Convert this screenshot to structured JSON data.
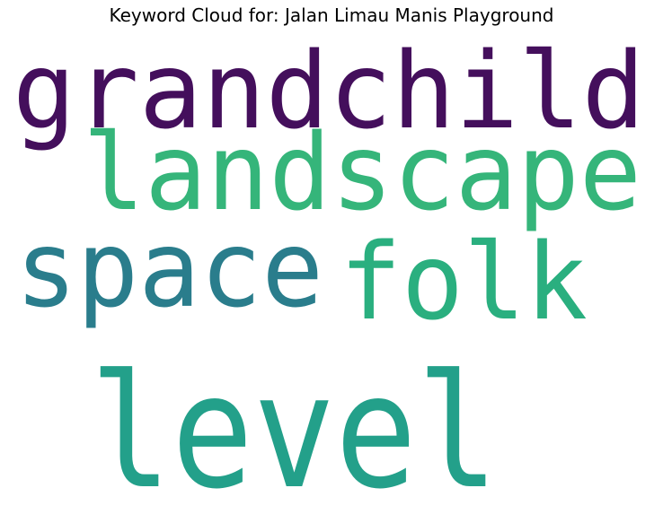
{
  "chart_data": {
    "type": "wordcloud",
    "title": "Keyword Cloud for: Jalan Limau Manis Playground",
    "words": [
      {
        "text": "grandchild",
        "color": "#440f5c"
      },
      {
        "text": "landscape",
        "color": "#35b57a"
      },
      {
        "text": "space",
        "color": "#2a7d8c"
      },
      {
        "text": "folk",
        "color": "#2aaf7f"
      },
      {
        "text": "level",
        "color": "#23a08a"
      }
    ]
  }
}
